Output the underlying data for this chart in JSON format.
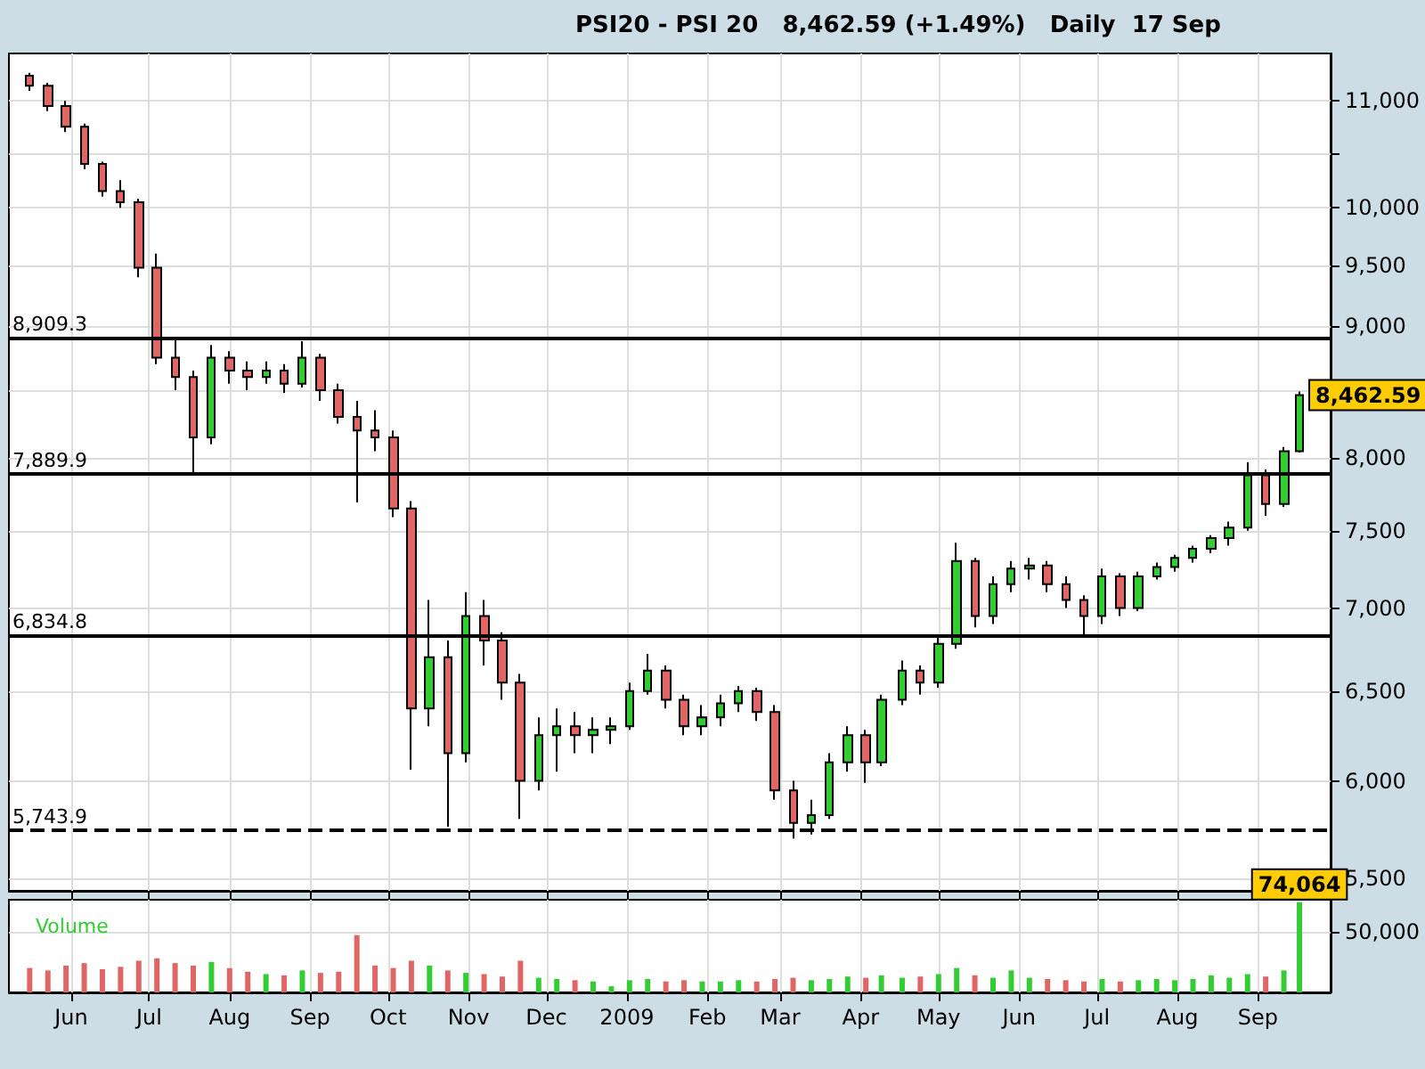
{
  "chart_data": [
    {
      "type": "candlestick",
      "title": "PSI20 - PSI 20   8,462.59 (+1.49%)   Daily  17 Sep",
      "x": [
        "2008-05-16",
        "2008-05-23",
        "2008-05-30",
        "2008-06-06",
        "2008-06-13",
        "2008-06-20",
        "2008-06-27",
        "2008-07-04",
        "2008-07-11",
        "2008-07-18",
        "2008-07-25",
        "2008-08-01",
        "2008-08-08",
        "2008-08-15",
        "2008-08-22",
        "2008-08-29",
        "2008-09-05",
        "2008-09-12",
        "2008-09-19",
        "2008-09-26",
        "2008-10-03",
        "2008-10-10",
        "2008-10-17",
        "2008-10-24",
        "2008-10-31",
        "2008-11-07",
        "2008-11-14",
        "2008-11-21",
        "2008-11-28",
        "2008-12-05",
        "2008-12-12",
        "2008-12-19",
        "2008-12-26",
        "2009-01-02",
        "2009-01-09",
        "2009-01-16",
        "2009-01-23",
        "2009-01-30",
        "2009-02-06",
        "2009-02-13",
        "2009-02-20",
        "2009-02-27",
        "2009-03-06",
        "2009-03-13",
        "2009-03-20",
        "2009-03-27",
        "2009-04-03",
        "2009-04-09",
        "2009-04-17",
        "2009-04-24",
        "2009-05-01",
        "2009-05-08",
        "2009-05-15",
        "2009-05-22",
        "2009-05-29",
        "2009-06-05",
        "2009-06-12",
        "2009-06-19",
        "2009-06-26",
        "2009-07-03",
        "2009-07-10",
        "2009-07-17",
        "2009-07-24",
        "2009-07-31",
        "2009-08-07",
        "2009-08-14",
        "2009-08-21",
        "2009-08-28",
        "2009-09-04",
        "2009-09-11",
        "2009-09-17"
      ],
      "ohlc": [
        [
          11250,
          11280,
          11100,
          11150
        ],
        [
          11150,
          11180,
          10900,
          10950
        ],
        [
          10950,
          11000,
          10700,
          10750
        ],
        [
          10750,
          10780,
          10350,
          10400
        ],
        [
          10400,
          10420,
          10100,
          10150
        ],
        [
          10150,
          10250,
          10000,
          10050
        ],
        [
          10050,
          10080,
          9400,
          9480
        ],
        [
          9480,
          9600,
          8700,
          8750
        ],
        [
          8750,
          8900,
          8500,
          8600
        ],
        [
          8600,
          8650,
          7880,
          8150
        ],
        [
          8150,
          8850,
          8100,
          8750
        ],
        [
          8750,
          8800,
          8550,
          8650
        ],
        [
          8650,
          8720,
          8500,
          8600
        ],
        [
          8600,
          8720,
          8550,
          8650
        ],
        [
          8650,
          8700,
          8480,
          8550
        ],
        [
          8550,
          8880,
          8520,
          8750
        ],
        [
          8750,
          8780,
          8420,
          8500
        ],
        [
          8500,
          8550,
          8250,
          8300
        ],
        [
          8300,
          8420,
          7690,
          8200
        ],
        [
          8200,
          8350,
          8050,
          8150
        ],
        [
          8150,
          8200,
          7590,
          7650
        ],
        [
          7650,
          7700,
          6060,
          6400
        ],
        [
          6400,
          7050,
          6300,
          6700
        ],
        [
          6700,
          6800,
          5760,
          6150
        ],
        [
          6150,
          7100,
          6100,
          6950
        ],
        [
          6950,
          7050,
          6650,
          6800
        ],
        [
          6800,
          6850,
          6450,
          6550
        ],
        [
          6550,
          6600,
          5800,
          6000
        ],
        [
          6000,
          6350,
          5950,
          6250
        ],
        [
          6250,
          6400,
          6050,
          6300
        ],
        [
          6300,
          6380,
          6150,
          6250
        ],
        [
          6250,
          6350,
          6150,
          6280
        ],
        [
          6280,
          6350,
          6200,
          6300
        ],
        [
          6300,
          6550,
          6280,
          6500
        ],
        [
          6500,
          6720,
          6480,
          6620
        ],
        [
          6620,
          6650,
          6400,
          6450
        ],
        [
          6450,
          6480,
          6250,
          6300
        ],
        [
          6300,
          6420,
          6250,
          6350
        ],
        [
          6350,
          6480,
          6300,
          6430
        ],
        [
          6430,
          6530,
          6380,
          6500
        ],
        [
          6500,
          6520,
          6330,
          6380
        ],
        [
          6380,
          6420,
          5900,
          5950
        ],
        [
          5950,
          6000,
          5700,
          5780
        ],
        [
          5780,
          5900,
          5720,
          5820
        ],
        [
          5820,
          6150,
          5800,
          6100
        ],
        [
          6100,
          6300,
          6050,
          6250
        ],
        [
          6250,
          6280,
          5990,
          6100
        ],
        [
          6100,
          6480,
          6080,
          6450
        ],
        [
          6450,
          6680,
          6420,
          6620
        ],
        [
          6620,
          6650,
          6480,
          6550
        ],
        [
          6550,
          6820,
          6520,
          6780
        ],
        [
          6780,
          7420,
          6750,
          7300
        ],
        [
          7300,
          7320,
          6880,
          6950
        ],
        [
          6950,
          7200,
          6900,
          7150
        ],
        [
          7150,
          7300,
          7100,
          7250
        ],
        [
          7250,
          7320,
          7180,
          7270
        ],
        [
          7270,
          7300,
          7100,
          7150
        ],
        [
          7150,
          7200,
          7000,
          7050
        ],
        [
          7050,
          7080,
          6830,
          6950
        ],
        [
          6950,
          7250,
          6900,
          7200
        ],
        [
          7200,
          7220,
          6950,
          7000
        ],
        [
          7000,
          7230,
          6980,
          7200
        ],
        [
          7200,
          7290,
          7180,
          7260
        ],
        [
          7260,
          7340,
          7230,
          7320
        ],
        [
          7320,
          7400,
          7290,
          7380
        ],
        [
          7380,
          7470,
          7350,
          7450
        ],
        [
          7450,
          7560,
          7400,
          7520
        ],
        [
          7520,
          7970,
          7500,
          7880
        ],
        [
          7880,
          7920,
          7600,
          7680
        ],
        [
          7680,
          8080,
          7660,
          8050
        ],
        [
          8050,
          8490,
          8040,
          8462.59
        ]
      ],
      "xlim": [
        "2008-05-08",
        "2009-09-29"
      ],
      "xticks": [
        {
          "value": "2008-06-01",
          "label": null
        },
        {
          "value": "2008-07-01",
          "label": null
        },
        {
          "value": "2008-08-01",
          "label": null
        },
        {
          "value": "2008-09-01",
          "label": null
        },
        {
          "value": "2008-10-01",
          "label": null
        },
        {
          "value": "2008-11-01",
          "label": null
        },
        {
          "value": "2008-12-01",
          "label": null
        },
        {
          "value": "2009-01-01",
          "label": null
        },
        {
          "value": "2009-02-01",
          "label": null
        },
        {
          "value": "2009-03-01",
          "label": null
        },
        {
          "value": "2009-04-01",
          "label": null
        },
        {
          "value": "2009-05-01",
          "label": null
        },
        {
          "value": "2009-06-01",
          "label": null
        },
        {
          "value": "2009-07-01",
          "label": null
        },
        {
          "value": "2009-08-01",
          "label": null
        },
        {
          "value": "2009-09-01",
          "label": null
        }
      ],
      "log": true,
      "ylim": [
        5440,
        11476
      ],
      "yticks": [
        {
          "value": 5500,
          "label": "5,500"
        },
        {
          "value": 6000,
          "label": "6,000"
        },
        {
          "value": 6500,
          "label": "6,500"
        },
        {
          "value": 7000,
          "label": "7,000"
        },
        {
          "value": 7500,
          "label": "7,500"
        },
        {
          "value": 8000,
          "label": "8,000"
        },
        {
          "value": 8500,
          "label": null
        },
        {
          "value": 9000,
          "label": "9,000"
        },
        {
          "value": 9500,
          "label": "9,500"
        },
        {
          "value": 10000,
          "label": "10,000"
        },
        {
          "value": 10500,
          "label": null
        },
        {
          "value": 11000,
          "label": "11,000"
        }
      ],
      "ref_lines": [
        {
          "axis": "y",
          "value": 8909.3,
          "label": "8,909.3",
          "line_style": "solid"
        },
        {
          "axis": "y",
          "value": 7889.9,
          "label": "7,889.9",
          "line_style": "solid"
        },
        {
          "axis": "y",
          "value": 6834.8,
          "label": "6,834.8",
          "line_style": "solid"
        },
        {
          "axis": "y",
          "value": 5743.9,
          "label": "5,743.9",
          "line_style": "dashed"
        }
      ],
      "annotations": [
        {
          "text": "8,462.59",
          "x": "2009-09-17",
          "y": 8462.59
        }
      ],
      "grid": true,
      "tick_labels": "y"
    },
    {
      "type": "bar",
      "x": [
        "2008-05-16",
        "2008-05-23",
        "2008-05-30",
        "2008-06-06",
        "2008-06-13",
        "2008-06-20",
        "2008-06-27",
        "2008-07-04",
        "2008-07-11",
        "2008-07-18",
        "2008-07-25",
        "2008-08-01",
        "2008-08-08",
        "2008-08-15",
        "2008-08-22",
        "2008-08-29",
        "2008-09-05",
        "2008-09-12",
        "2008-09-19",
        "2008-09-26",
        "2008-10-03",
        "2008-10-10",
        "2008-10-17",
        "2008-10-24",
        "2008-10-31",
        "2008-11-07",
        "2008-11-14",
        "2008-11-21",
        "2008-11-28",
        "2008-12-05",
        "2008-12-12",
        "2008-12-19",
        "2008-12-26",
        "2009-01-02",
        "2009-01-09",
        "2009-01-16",
        "2009-01-23",
        "2009-01-30",
        "2009-02-06",
        "2009-02-13",
        "2009-02-20",
        "2009-02-27",
        "2009-03-06",
        "2009-03-13",
        "2009-03-20",
        "2009-03-27",
        "2009-04-03",
        "2009-04-09",
        "2009-04-17",
        "2009-04-24",
        "2009-05-01",
        "2009-05-08",
        "2009-05-15",
        "2009-05-22",
        "2009-05-29",
        "2009-06-05",
        "2009-06-12",
        "2009-06-19",
        "2009-06-26",
        "2009-07-03",
        "2009-07-10",
        "2009-07-17",
        "2009-07-24",
        "2009-07-31",
        "2009-08-07",
        "2009-08-14",
        "2009-08-21",
        "2009-08-28",
        "2009-09-04",
        "2009-09-11",
        "2009-09-17"
      ],
      "series": [
        {
          "name": "Volume",
          "values": [
            20000,
            18000,
            22000,
            24000,
            19000,
            21000,
            26000,
            28000,
            24000,
            22000,
            25000,
            20000,
            17000,
            15000,
            14000,
            18000,
            16000,
            17000,
            47000,
            22000,
            20000,
            26000,
            22000,
            18000,
            16000,
            15000,
            13000,
            26000,
            12000,
            11000,
            10000,
            9000,
            5000,
            10000,
            11000,
            9000,
            10000,
            9000,
            9000,
            10000,
            9000,
            11000,
            12000,
            10000,
            11000,
            13000,
            12000,
            14000,
            12000,
            13000,
            15000,
            20000,
            14000,
            12000,
            18000,
            12000,
            11000,
            10000,
            9000,
            11000,
            9000,
            10000,
            11000,
            10000,
            11000,
            14000,
            12000,
            15000,
            13000,
            18000,
            74064
          ],
          "colors": [
            "#e06666",
            "#e06666",
            "#e06666",
            "#e06666",
            "#e06666",
            "#e06666",
            "#e06666",
            "#e06666",
            "#e06666",
            "#e06666",
            "#33cc33",
            "#e06666",
            "#e06666",
            "#33cc33",
            "#e06666",
            "#33cc33",
            "#e06666",
            "#e06666",
            "#e06666",
            "#e06666",
            "#e06666",
            "#e06666",
            "#33cc33",
            "#e06666",
            "#33cc33",
            "#e06666",
            "#e06666",
            "#e06666",
            "#33cc33",
            "#33cc33",
            "#e06666",
            "#33cc33",
            "#33cc33",
            "#33cc33",
            "#33cc33",
            "#e06666",
            "#e06666",
            "#33cc33",
            "#33cc33",
            "#33cc33",
            "#e06666",
            "#e06666",
            "#e06666",
            "#33cc33",
            "#33cc33",
            "#33cc33",
            "#e06666",
            "#33cc33",
            "#33cc33",
            "#e06666",
            "#33cc33",
            "#33cc33",
            "#e06666",
            "#33cc33",
            "#33cc33",
            "#33cc33",
            "#e06666",
            "#e06666",
            "#e06666",
            "#33cc33",
            "#e06666",
            "#33cc33",
            "#33cc33",
            "#33cc33",
            "#33cc33",
            "#33cc33",
            "#33cc33",
            "#33cc33",
            "#e06666",
            "#33cc33",
            "#33cc33"
          ],
          "value_labels": [
            null,
            null,
            null,
            null,
            null,
            null,
            null,
            null,
            null,
            null,
            null,
            null,
            null,
            null,
            null,
            null,
            null,
            null,
            null,
            null,
            null,
            null,
            null,
            null,
            null,
            null,
            null,
            null,
            null,
            null,
            null,
            null,
            null,
            null,
            null,
            null,
            null,
            null,
            null,
            null,
            null,
            null,
            null,
            null,
            null,
            null,
            null,
            null,
            null,
            null,
            null,
            null,
            null,
            null,
            null,
            null,
            null,
            null,
            null,
            null,
            null,
            null,
            null,
            null,
            null,
            null,
            null,
            null,
            null,
            null,
            "74,064"
          ]
        }
      ],
      "xlim": [
        "2008-05-08",
        "2009-09-29"
      ],
      "xticks": [
        {
          "value": "2008-06-01",
          "label": "Jun"
        },
        {
          "value": "2008-07-01",
          "label": "Jul"
        },
        {
          "value": "2008-08-01",
          "label": "Aug"
        },
        {
          "value": "2008-09-01",
          "label": "Sep"
        },
        {
          "value": "2008-10-01",
          "label": "Oct"
        },
        {
          "value": "2008-11-01",
          "label": "Nov"
        },
        {
          "value": "2008-12-01",
          "label": "Dec"
        },
        {
          "value": "2009-01-01",
          "label": "2009"
        },
        {
          "value": "2009-02-01",
          "label": "Feb"
        },
        {
          "value": "2009-03-01",
          "label": "Mar"
        },
        {
          "value": "2009-04-01",
          "label": "Apr"
        },
        {
          "value": "2009-05-01",
          "label": "May"
        },
        {
          "value": "2009-06-01",
          "label": "Jun"
        },
        {
          "value": "2009-07-01",
          "label": "Jul"
        },
        {
          "value": "2009-08-01",
          "label": "Aug"
        },
        {
          "value": "2009-09-01",
          "label": "Sep"
        }
      ],
      "ylim": [
        0,
        76000
      ],
      "yticks": [
        {
          "value": 50000,
          "label": "50,000"
        }
      ],
      "legend": "top left",
      "grid": true
    }
  ]
}
